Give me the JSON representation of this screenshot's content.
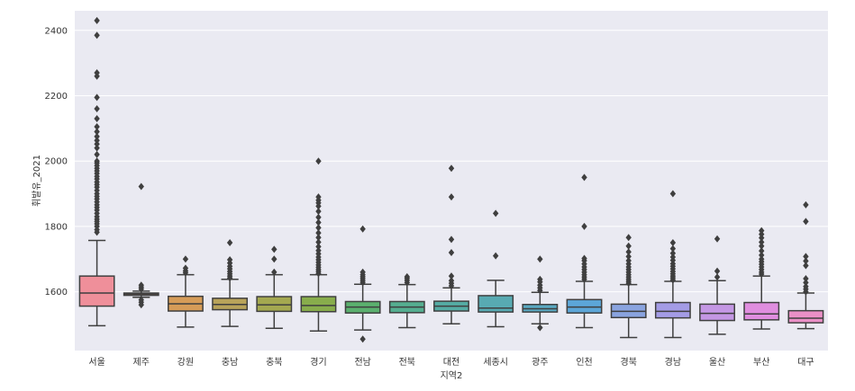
{
  "chart_data": {
    "type": "box",
    "xlabel": "지역2",
    "ylabel": "휘발유_2021",
    "ylim": [
      1420,
      2460
    ],
    "yticks": [
      1600,
      1800,
      2000,
      2200,
      2400
    ],
    "grid": true,
    "categories": [
      {
        "name": "서울",
        "color": "#ef8f9a",
        "whisker_low": 1496,
        "q1": 1556,
        "median": 1596,
        "q3": 1648,
        "whisker_high": 1757,
        "outliers": [
          1782,
          1790,
          1800,
          1808,
          1815,
          1822,
          1830,
          1840,
          1850,
          1858,
          1866,
          1875,
          1884,
          1892,
          1900,
          1910,
          1920,
          1928,
          1936,
          1945,
          1953,
          1962,
          1970,
          1978,
          1986,
          1994,
          2000,
          2020,
          2040,
          2052,
          2063,
          2075,
          2090,
          2105,
          2130,
          2160,
          2195,
          2260,
          2270,
          2385,
          2430
        ]
      },
      {
        "name": "제주",
        "color": "#e7a080",
        "whisker_low": 1583,
        "q1": 1589,
        "median": 1593,
        "q3": 1596,
        "whisker_high": 1602,
        "outliers": [
          1560,
          1568,
          1575,
          1608,
          1614,
          1620,
          1922
        ]
      },
      {
        "name": "강원",
        "color": "#d69c58",
        "whisker_low": 1492,
        "q1": 1541,
        "median": 1563,
        "q3": 1586,
        "whisker_high": 1652,
        "outliers": [
          1658,
          1664,
          1672,
          1700
        ]
      },
      {
        "name": "충남",
        "color": "#b8a35a",
        "whisker_low": 1494,
        "q1": 1545,
        "median": 1561,
        "q3": 1580,
        "whisker_high": 1638,
        "outliers": [
          1642,
          1648,
          1655,
          1662,
          1670,
          1678,
          1688,
          1698,
          1750
        ]
      },
      {
        "name": "충북",
        "color": "#a4a850",
        "whisker_low": 1488,
        "q1": 1540,
        "median": 1560,
        "q3": 1585,
        "whisker_high": 1652,
        "outliers": [
          1660,
          1700,
          1730
        ]
      },
      {
        "name": "경기",
        "color": "#88ad4c",
        "whisker_low": 1480,
        "q1": 1539,
        "median": 1558,
        "q3": 1585,
        "whisker_high": 1652,
        "outliers": [
          1656,
          1662,
          1668,
          1675,
          1682,
          1690,
          1698,
          1706,
          1716,
          1726,
          1738,
          1752,
          1766,
          1780,
          1796,
          1812,
          1828,
          1846,
          1862,
          1872,
          1880,
          1890,
          2000
        ]
      },
      {
        "name": "전남",
        "color": "#5bb06e",
        "whisker_low": 1483,
        "q1": 1535,
        "median": 1553,
        "q3": 1570,
        "whisker_high": 1623,
        "outliers": [
          1628,
          1634,
          1640,
          1646,
          1652,
          1660,
          1792,
          1455
        ]
      },
      {
        "name": "전북",
        "color": "#55ae90",
        "whisker_low": 1490,
        "q1": 1536,
        "median": 1553,
        "q3": 1570,
        "whisker_high": 1622,
        "outliers": [
          1628,
          1635,
          1641,
          1646
        ]
      },
      {
        "name": "대전",
        "color": "#55aca4",
        "whisker_low": 1502,
        "q1": 1541,
        "median": 1556,
        "q3": 1571,
        "whisker_high": 1612,
        "outliers": [
          1618,
          1626,
          1634,
          1648,
          1720,
          1760,
          1890,
          1978
        ]
      },
      {
        "name": "세종시",
        "color": "#58aab2",
        "whisker_low": 1493,
        "q1": 1538,
        "median": 1550,
        "q3": 1588,
        "whisker_high": 1635,
        "outliers": [
          1710,
          1840
        ]
      },
      {
        "name": "광주",
        "color": "#5aa9c2",
        "whisker_low": 1502,
        "q1": 1538,
        "median": 1548,
        "q3": 1561,
        "whisker_high": 1598,
        "outliers": [
          1490,
          1604,
          1612,
          1620,
          1630,
          1638,
          1700
        ]
      },
      {
        "name": "인천",
        "color": "#5ca6d8",
        "whisker_low": 1490,
        "q1": 1535,
        "median": 1553,
        "q3": 1576,
        "whisker_high": 1632,
        "outliers": [
          1638,
          1645,
          1652,
          1660,
          1668,
          1676,
          1685,
          1695,
          1702,
          1800,
          1950
        ]
      },
      {
        "name": "경북",
        "color": "#8aa4e0",
        "whisker_low": 1460,
        "q1": 1521,
        "median": 1540,
        "q3": 1562,
        "whisker_high": 1622,
        "outliers": [
          1626,
          1632,
          1638,
          1645,
          1652,
          1660,
          1668,
          1676,
          1685,
          1695,
          1708,
          1722,
          1740,
          1766
        ]
      },
      {
        "name": "경남",
        "color": "#a49ce6",
        "whisker_low": 1460,
        "q1": 1520,
        "median": 1540,
        "q3": 1567,
        "whisker_high": 1632,
        "outliers": [
          1636,
          1642,
          1648,
          1655,
          1662,
          1670,
          1678,
          1686,
          1696,
          1706,
          1718,
          1732,
          1750,
          1900
        ]
      },
      {
        "name": "울산",
        "color": "#c497e4",
        "whisker_low": 1470,
        "q1": 1512,
        "median": 1534,
        "q3": 1562,
        "whisker_high": 1634,
        "outliers": [
          1645,
          1663,
          1762
        ]
      },
      {
        "name": "부산",
        "color": "#e08edf",
        "whisker_low": 1486,
        "q1": 1514,
        "median": 1532,
        "q3": 1567,
        "whisker_high": 1648,
        "outliers": [
          1654,
          1660,
          1668,
          1676,
          1684,
          1692,
          1700,
          1712,
          1725,
          1740,
          1752,
          1765,
          1776,
          1787
        ]
      },
      {
        "name": "대구",
        "color": "#ea90c6",
        "whisker_low": 1487,
        "q1": 1505,
        "median": 1519,
        "q3": 1542,
        "whisker_high": 1596,
        "outliers": [
          1600,
          1608,
          1616,
          1628,
          1640,
          1680,
          1694,
          1708,
          1815,
          1866
        ]
      }
    ]
  }
}
